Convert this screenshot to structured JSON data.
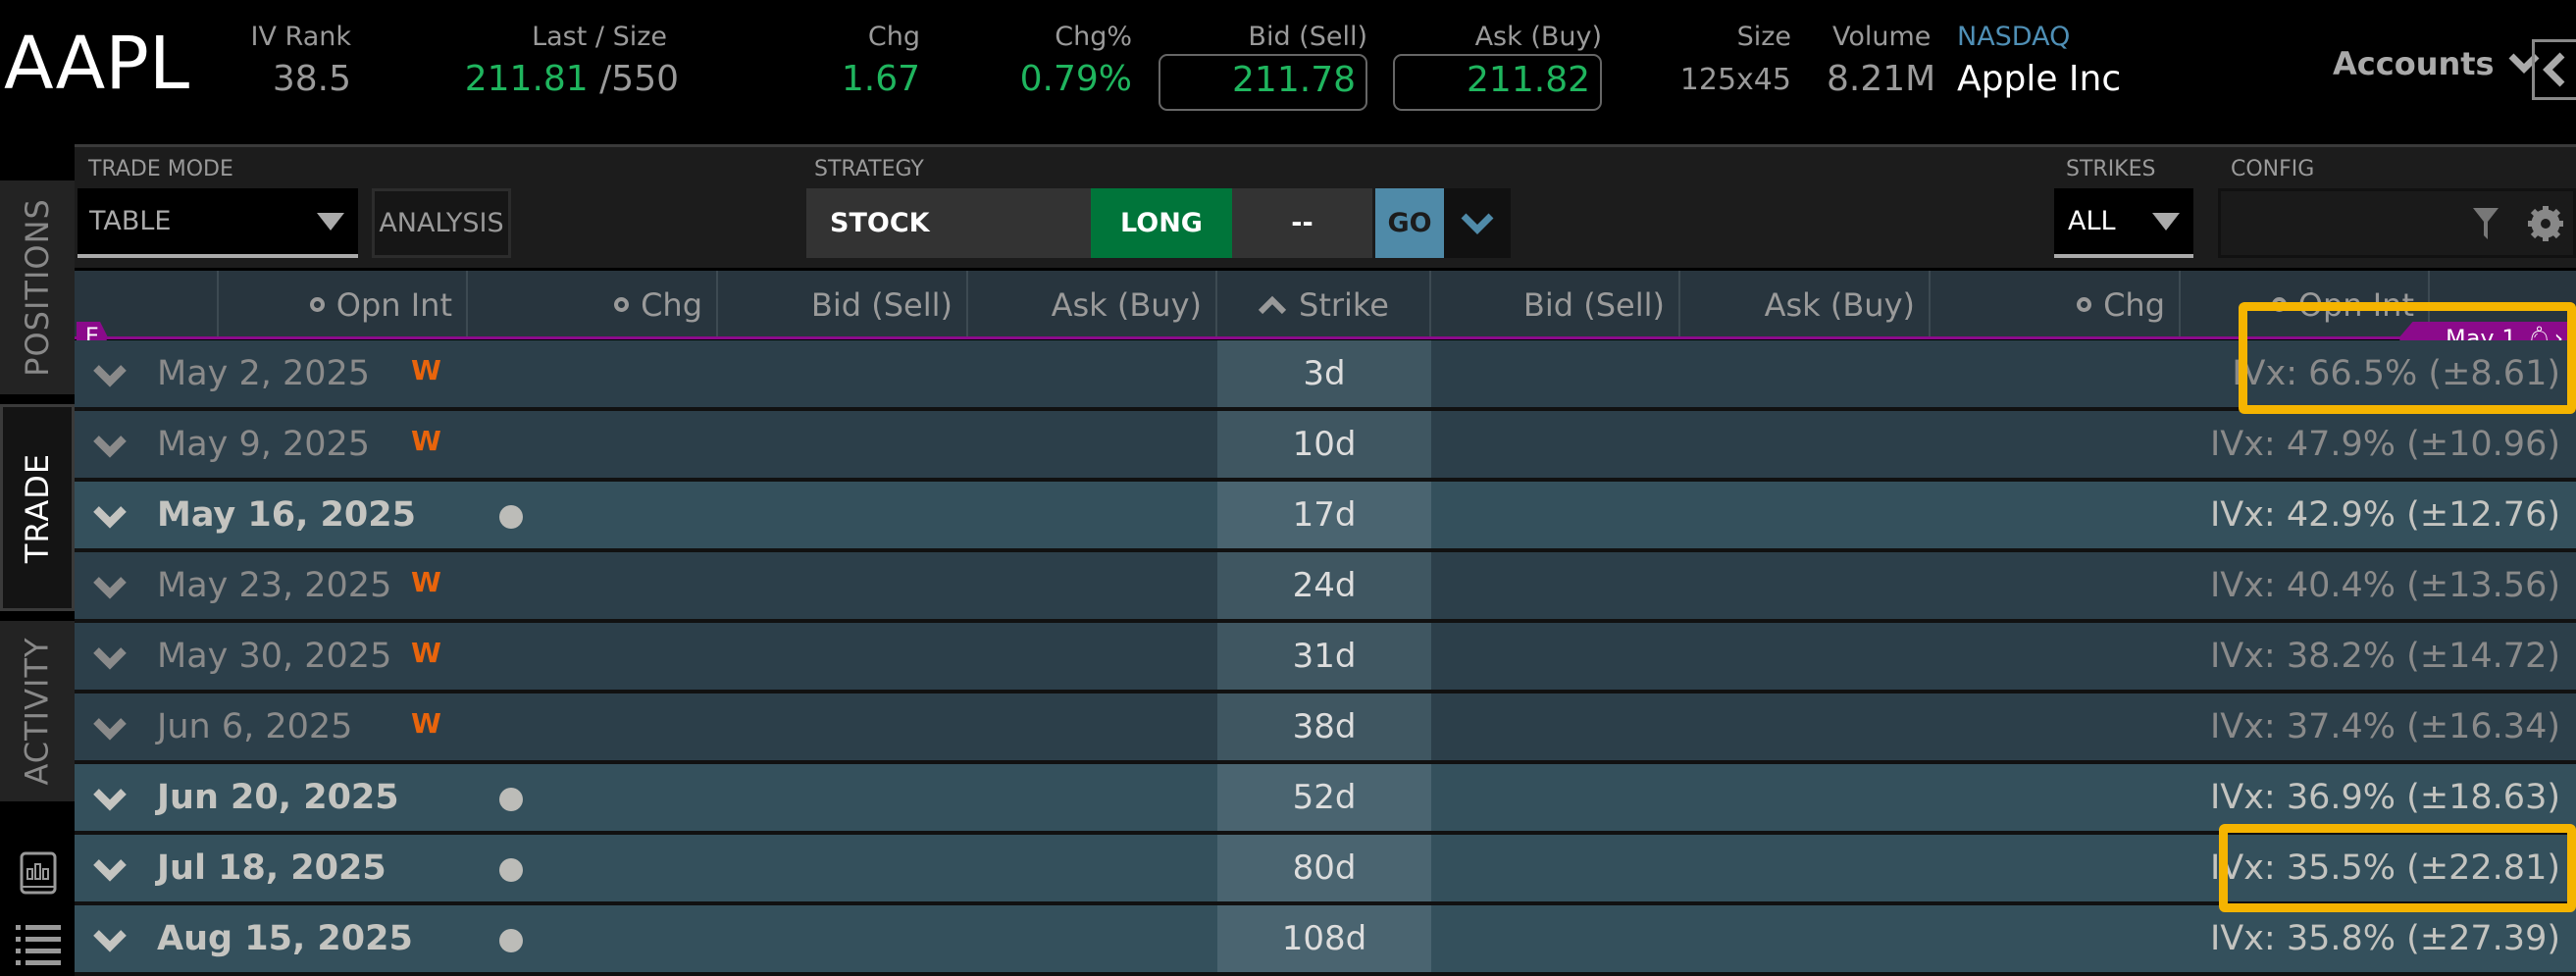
{
  "header": {
    "symbol": "AAPL",
    "iv_rank": {
      "label": "IV Rank",
      "value": "38.5"
    },
    "last_size": {
      "label": "Last / Size",
      "last": "211.81",
      "size": "/550"
    },
    "chg": {
      "label": "Chg",
      "value": "1.67"
    },
    "chg_pct": {
      "label": "Chg%",
      "value": "0.79%"
    },
    "bid": {
      "label": "Bid (Sell)",
      "value": "211.78"
    },
    "ask": {
      "label": "Ask (Buy)",
      "value": "211.82"
    },
    "size": {
      "label": "Size",
      "value": "125x45"
    },
    "volume": {
      "label": "Volume",
      "value": "8.21M"
    },
    "exchange": "NASDAQ",
    "company": "Apple Inc",
    "accounts": "Accounts"
  },
  "sidebar": {
    "tabs": [
      {
        "label": "POSITIONS"
      },
      {
        "label": "TRADE",
        "active": true
      },
      {
        "label": "ACTIVITY"
      }
    ]
  },
  "toolbar": {
    "trade_mode_label": "TRADE MODE",
    "trade_mode_value": "TABLE",
    "analysis": "ANALYSIS",
    "strategy_label": "STRATEGY",
    "strategy": "STOCK",
    "direction": "LONG",
    "qty": "--",
    "go": "GO",
    "strikes_label": "STRIKES",
    "strikes_value": "ALL",
    "config_label": "CONFIG"
  },
  "columns": [
    "Opn Int",
    "Chg",
    "Bid (Sell)",
    "Ask (Buy)",
    "Strike",
    "Bid (Sell)",
    "Ask (Buy)",
    "Chg",
    "Opn Int"
  ],
  "markers": {
    "earnings": "E",
    "event": "May 1"
  },
  "colors": {
    "up": "#1fb55e",
    "weekly": "#e8640c",
    "highlight": "#f5b400",
    "event": "#8b0a8b",
    "go": "#4f8aa8",
    "long": "#00753a"
  },
  "expirations": [
    {
      "date": "May 2, 2025",
      "weekly": "W",
      "dte": "3d",
      "ivx": "IVx: 66.5% (±8.61)",
      "monthly": false,
      "highlighted": true
    },
    {
      "date": "May 9, 2025",
      "weekly": "W",
      "dte": "10d",
      "ivx": "IVx: 47.9% (±10.96)",
      "monthly": false
    },
    {
      "date": "May 16, 2025",
      "weekly": "",
      "dte": "17d",
      "ivx": "IVx: 42.9% (±12.76)",
      "monthly": true
    },
    {
      "date": "May 23, 2025",
      "weekly": "W",
      "dte": "24d",
      "ivx": "IVx: 40.4% (±13.56)",
      "monthly": false
    },
    {
      "date": "May 30, 2025",
      "weekly": "W",
      "dte": "31d",
      "ivx": "IVx: 38.2% (±14.72)",
      "monthly": false
    },
    {
      "date": "Jun 6, 2025",
      "weekly": "W",
      "dte": "38d",
      "ivx": "IVx: 37.4% (±16.34)",
      "monthly": false
    },
    {
      "date": "Jun 20, 2025",
      "weekly": "",
      "dte": "52d",
      "ivx": "IVx: 36.9% (±18.63)",
      "monthly": true
    },
    {
      "date": "Jul 18, 2025",
      "weekly": "",
      "dte": "80d",
      "ivx": "IVx: 35.5% (±22.81)",
      "monthly": true,
      "highlighted": true
    },
    {
      "date": "Aug 15, 2025",
      "weekly": "",
      "dte": "108d",
      "ivx": "IVx: 35.8% (±27.39)",
      "monthly": true
    }
  ]
}
